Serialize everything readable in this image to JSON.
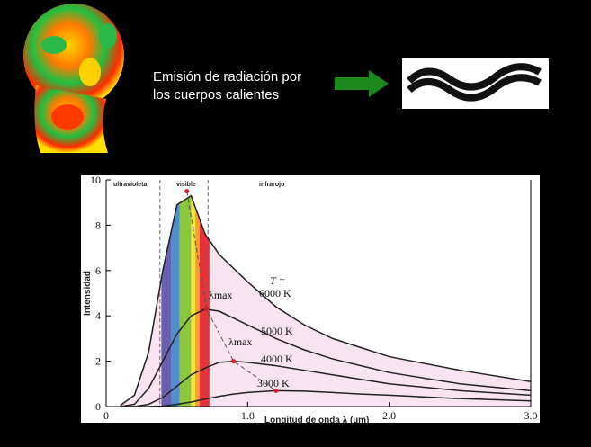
{
  "caption": [
    "Emisión de radiación por",
    "los cuerpos calientes"
  ],
  "chart_data": {
    "type": "line",
    "x_label": "Longitud de onda λ (µm)",
    "y_label": "Intensidad",
    "regions": [
      {
        "label": "ultravioleta"
      },
      {
        "label": "visible",
        "from": 0.38,
        "to": 0.72
      },
      {
        "label": "infrarojo"
      }
    ],
    "annotations": [
      "T =",
      "λmax",
      "λmax"
    ],
    "x": [
      0.1,
      0.2,
      0.3,
      0.4,
      0.5,
      0.6,
      0.7,
      0.8,
      0.9,
      1.0,
      1.2,
      1.4,
      1.6,
      1.8,
      2.0,
      2.5,
      3.0
    ],
    "series": [
      {
        "name": "6000 K",
        "color": "#222222",
        "values": [
          0.05,
          0.5,
          2.4,
          6.0,
          8.9,
          9.3,
          7.6,
          6.7,
          6.1,
          5.5,
          4.4,
          3.6,
          3.0,
          2.6,
          2.2,
          1.6,
          1.1
        ]
      },
      {
        "name": "5000 K",
        "color": "#222222",
        "values": [
          0,
          0.1,
          0.8,
          2.0,
          3.2,
          4.0,
          4.3,
          4.2,
          3.9,
          3.6,
          3.0,
          2.5,
          2.1,
          1.8,
          1.5,
          1.0,
          0.7
        ]
      },
      {
        "name": "4000 K",
        "color": "#222222",
        "values": [
          0,
          0,
          0.1,
          0.4,
          0.9,
          1.4,
          1.7,
          1.95,
          2.0,
          1.95,
          1.8,
          1.6,
          1.4,
          1.2,
          1.0,
          0.7,
          0.5
        ]
      },
      {
        "name": "3000 K",
        "color": "#222222",
        "values": [
          0,
          0,
          0,
          0.02,
          0.1,
          0.2,
          0.33,
          0.45,
          0.55,
          0.62,
          0.7,
          0.68,
          0.62,
          0.55,
          0.5,
          0.35,
          0.25
        ]
      }
    ],
    "peaks": {
      "x": [
        0.57,
        0.71,
        0.9,
        1.2
      ],
      "values": [
        9.5,
        4.3,
        2.0,
        0.7
      ],
      "color": "#d0202a"
    },
    "fill_color": "#f8e4f0",
    "bands": [
      {
        "from": 0.39,
        "to": 0.46,
        "color": "#6a5fb0"
      },
      {
        "from": 0.46,
        "to": 0.52,
        "color": "#4f8fd0"
      },
      {
        "from": 0.52,
        "to": 0.6,
        "color": "#8cc63f"
      },
      {
        "from": 0.6,
        "to": 0.63,
        "color": "#f2e33a"
      },
      {
        "from": 0.63,
        "to": 0.66,
        "color": "#f5a030"
      },
      {
        "from": 0.66,
        "to": 0.73,
        "color": "#e8323a"
      }
    ],
    "xlim": [
      0,
      3
    ],
    "xticks": [
      0,
      {
        "value": 1,
        "label": "1.0"
      },
      {
        "value": 2,
        "label": "2.0"
      },
      {
        "value": 3,
        "label": "3.0"
      }
    ],
    "ylim": [
      0,
      10
    ],
    "yticks": [
      0,
      2,
      4,
      6,
      8,
      10
    ]
  }
}
